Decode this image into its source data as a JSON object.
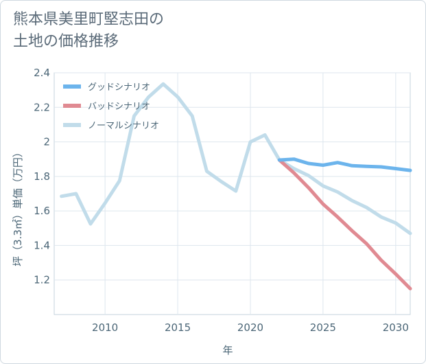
{
  "chart_data": {
    "type": "line",
    "title": "熊本県美里町堅志田の\n土地の価格推移",
    "xlabel": "年",
    "ylabel": "坪（3.3㎡）単価（万円）",
    "xlim": [
      2006.5,
      2031
    ],
    "ylim": [
      1.0,
      2.4
    ],
    "x_ticks": [
      2010,
      2015,
      2020,
      2025,
      2030
    ],
    "y_ticks": [
      1.2,
      1.4,
      1.6,
      1.8,
      2,
      2.2,
      2.4
    ],
    "grid": true,
    "legend_position": "top-left",
    "series": [
      {
        "name": "グッドシナリオ",
        "color": "#6cb4ec",
        "x": [
          2022,
          2023,
          2024,
          2025,
          2026,
          2027,
          2028,
          2029,
          2030,
          2031
        ],
        "values": [
          1.895,
          1.9,
          1.875,
          1.865,
          1.88,
          1.862,
          1.858,
          1.855,
          1.845,
          1.835
        ]
      },
      {
        "name": "バッドシナリオ",
        "color": "#e08a92",
        "x": [
          2022,
          2023,
          2024,
          2025,
          2026,
          2027,
          2028,
          2029,
          2030,
          2031
        ],
        "values": [
          1.895,
          1.82,
          1.735,
          1.64,
          1.565,
          1.485,
          1.41,
          1.315,
          1.235,
          1.15
        ]
      },
      {
        "name": "ノーマルシナリオ",
        "color": "#c1dcea",
        "x": [
          2007,
          2008,
          2009,
          2010,
          2011,
          2012,
          2013,
          2014,
          2015,
          2016,
          2017,
          2018,
          2019,
          2020,
          2021,
          2022,
          2023,
          2024,
          2025,
          2026,
          2027,
          2028,
          2029,
          2030,
          2031
        ],
        "values": [
          1.685,
          1.7,
          1.525,
          1.645,
          1.775,
          2.15,
          2.26,
          2.335,
          2.26,
          2.15,
          1.83,
          1.77,
          1.715,
          2.0,
          2.04,
          1.895,
          1.845,
          1.805,
          1.745,
          1.71,
          1.66,
          1.62,
          1.565,
          1.53,
          1.47
        ]
      }
    ]
  }
}
